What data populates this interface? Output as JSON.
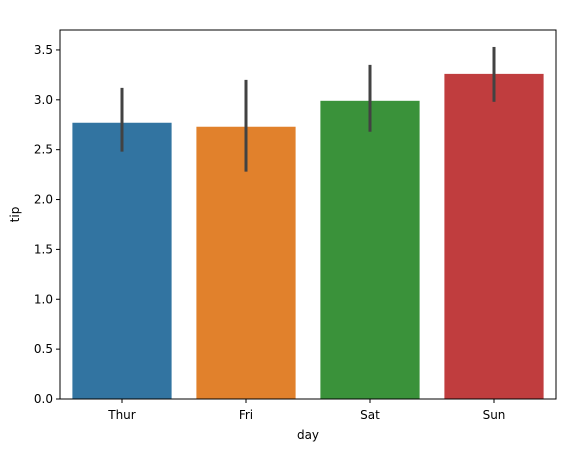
{
  "chart_data": {
    "type": "bar",
    "title": "",
    "xlabel": "day",
    "ylabel": "tip",
    "categories": [
      "Thur",
      "Fri",
      "Sat",
      "Sun"
    ],
    "values": [
      2.77,
      2.73,
      2.99,
      3.26
    ],
    "error_bars": [
      {
        "low": 2.48,
        "high": 3.12
      },
      {
        "low": 2.28,
        "high": 3.2
      },
      {
        "low": 2.68,
        "high": 3.35
      },
      {
        "low": 2.98,
        "high": 3.53
      }
    ],
    "ylim": [
      0,
      3.7
    ],
    "yticks": [
      "0.0",
      "0.5",
      "1.0",
      "1.5",
      "2.0",
      "2.5",
      "3.0",
      "3.5"
    ],
    "grid": false,
    "legend": "none",
    "colors": [
      "#3274a1",
      "#e1812c",
      "#3a923a",
      "#c03d3e"
    ],
    "errorbar_color": "#424242"
  }
}
